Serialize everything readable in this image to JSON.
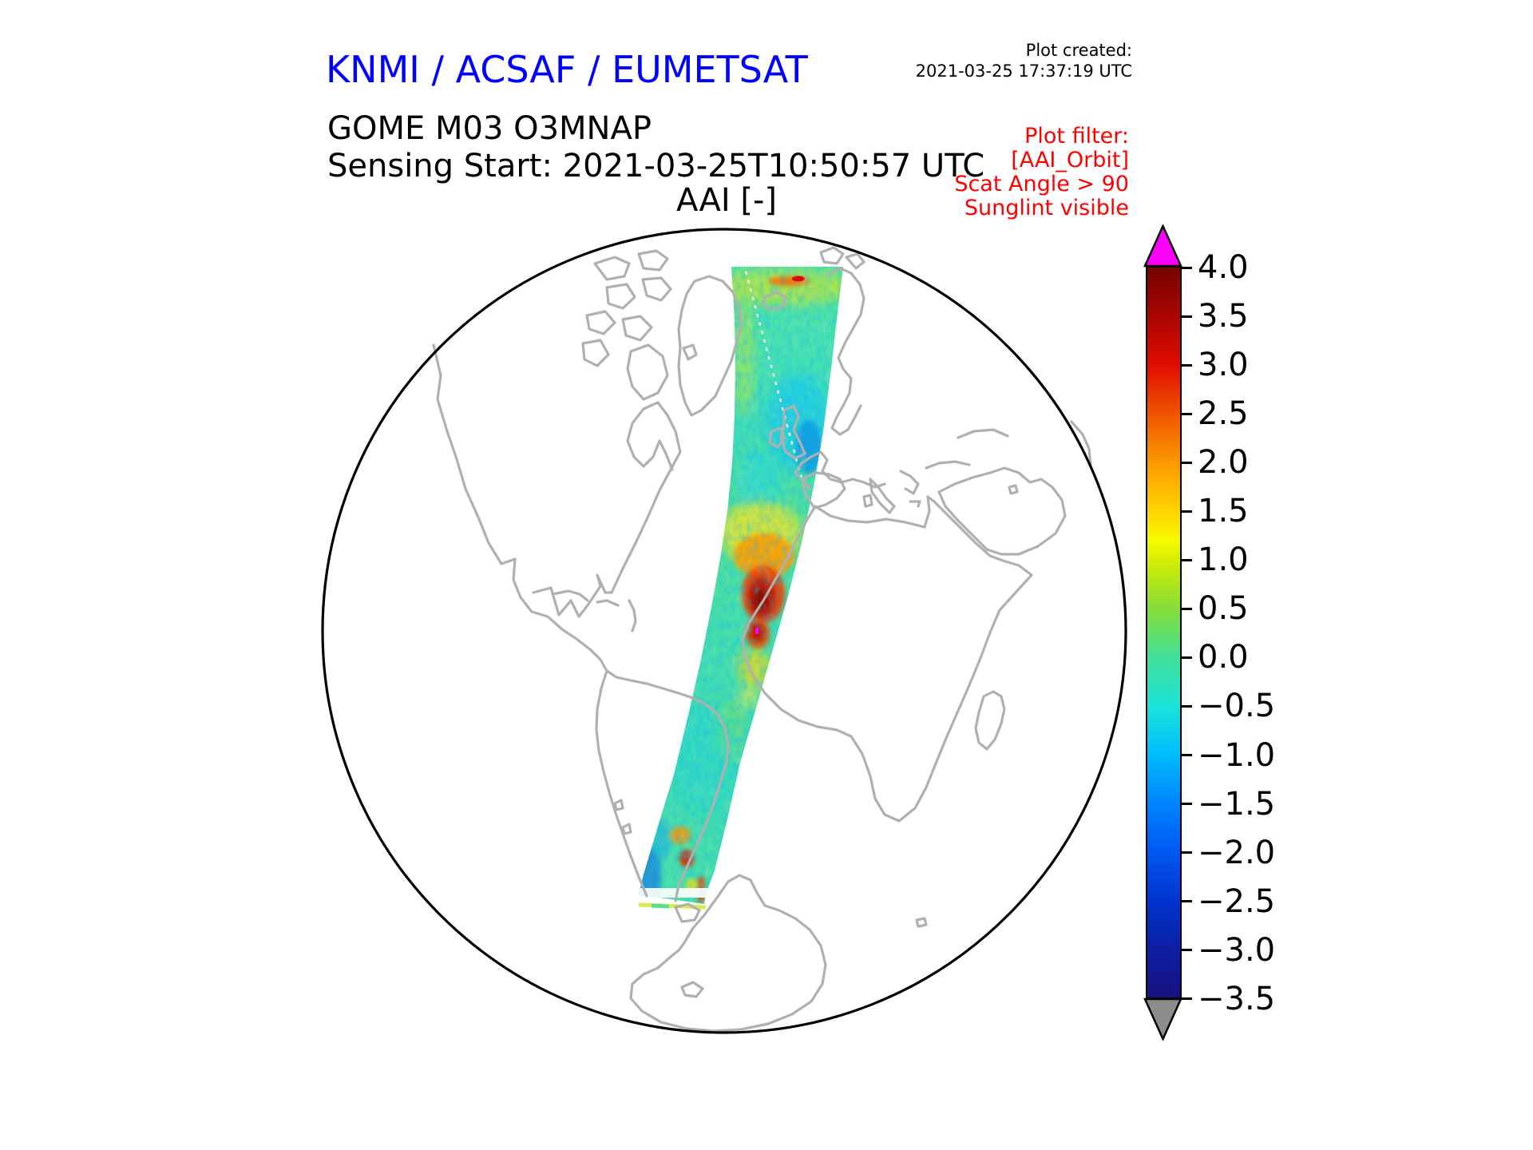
{
  "header": {
    "brand": "KNMI / ACSAF / EUMETSAT",
    "brand_color": "#0000ff",
    "created_label": "Plot created:",
    "created_value": "2021-03-25 17:37:19 UTC",
    "product": "GOME M03 O3MNAP",
    "sensing": "Sensing Start: 2021-03-25T10:50:57 UTC"
  },
  "filter_note": {
    "color": "#ff0000",
    "lines": [
      "Plot filter:",
      "[AAI_Orbit]",
      "Scat Angle > 90",
      "Sunglint visible"
    ]
  },
  "map": {
    "title": "AAI [-]",
    "coastline_color": "#b0b0b0",
    "globe_outline_color": "#000000"
  },
  "chart_data": {
    "type": "heatmap",
    "title": "AAI [-]",
    "projection": "orthographic-globe",
    "region": "Atlantic, Americas, Europe, Africa, Antarctica",
    "swath": {
      "description": "Single GOME-2 Metop-A orbit swath of Absorbing Aerosol Index from the Arctic (~80N) across the eastern North Atlantic and West Africa down to the Southern Ocean",
      "background_value_range": [
        -1.0,
        1.0
      ],
      "hotspots": [
        {
          "feature": "Saharan dust plume off Morocco / Western Sahara",
          "approx_value": 2.0
        },
        {
          "feature": "dust core near Mauritania-Senegal coast",
          "approx_value": 4.0
        },
        {
          "feature": "saturated pixel in dust core",
          "approx_value": "> 4.0 (magenta over-range)"
        },
        {
          "feature": "cloud-edge speckle along swath",
          "approx_value": -1.5
        }
      ]
    },
    "colorbar": {
      "label": "AAI [-]",
      "orientation": "vertical",
      "vmin": -3.5,
      "vmax": 4.0,
      "tick_step": 0.5,
      "tick_labels": [
        "4.0",
        "3.5",
        "3.0",
        "2.5",
        "2.0",
        "1.5",
        "1.0",
        "0.5",
        "0.0",
        "−0.5",
        "−1.0",
        "−1.5",
        "−2.0",
        "−2.5",
        "−3.0",
        "−3.5"
      ],
      "over_arrow_color": "#ff00ff",
      "under_arrow_color": "#8c8c8c",
      "gradient_stops": [
        {
          "value": 4.0,
          "color": "#750400"
        },
        {
          "value": 3.5,
          "color": "#aa0500"
        },
        {
          "value": 3.0,
          "color": "#e00d00"
        },
        {
          "value": 2.5,
          "color": "#f05400"
        },
        {
          "value": 2.0,
          "color": "#fc9800"
        },
        {
          "value": 1.5,
          "color": "#ffd300"
        },
        {
          "value": 1.2,
          "color": "#f6fb00"
        },
        {
          "value": 1.0,
          "color": "#d7ee00"
        },
        {
          "value": 0.5,
          "color": "#86dd38"
        },
        {
          "value": 0.0,
          "color": "#41e098"
        },
        {
          "value": -0.5,
          "color": "#1ce3d9"
        },
        {
          "value": -1.0,
          "color": "#00bdfd"
        },
        {
          "value": -1.5,
          "color": "#0084ff"
        },
        {
          "value": -2.0,
          "color": "#0058f2"
        },
        {
          "value": -2.5,
          "color": "#0034cf"
        },
        {
          "value": -3.0,
          "color": "#0d1fa4"
        },
        {
          "value": -3.5,
          "color": "#191180"
        }
      ]
    }
  }
}
